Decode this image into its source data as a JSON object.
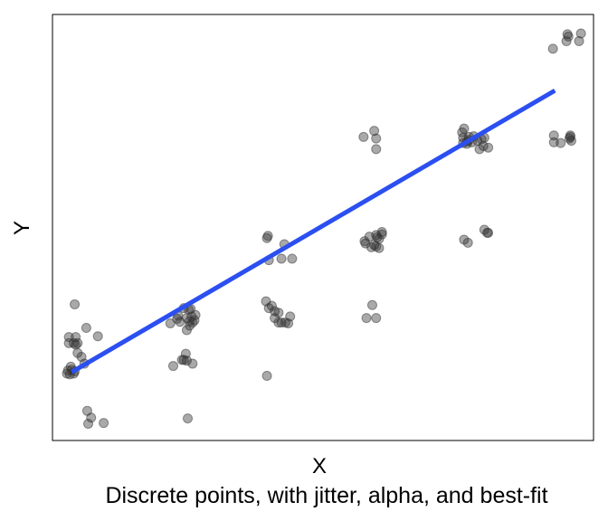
{
  "chart_data": {
    "type": "scatter",
    "title": "",
    "xlabel": "X",
    "ylabel": "Y",
    "caption": "Discrete points, with jitter, alpha, and best-fit",
    "xlim": [
      0.7,
      6.3
    ],
    "ylim": [
      0.7,
      6.3
    ],
    "grid": false,
    "legend": "none",
    "point_color": "#333333",
    "point_alpha": 0.42,
    "line_color": "#2b4ff0",
    "points": [
      {
        "x": 1.06,
        "y": 1.09
      },
      {
        "x": 1.1,
        "y": 1.0
      },
      {
        "x": 1.23,
        "y": 0.93
      },
      {
        "x": 1.07,
        "y": 0.92
      },
      {
        "x": 0.93,
        "y": 2.49
      },
      {
        "x": 1.05,
        "y": 2.18
      },
      {
        "x": 0.87,
        "y": 2.06
      },
      {
        "x": 0.94,
        "y": 2.06
      },
      {
        "x": 1.17,
        "y": 2.07
      },
      {
        "x": 0.92,
        "y": 1.98
      },
      {
        "x": 0.87,
        "y": 1.98
      },
      {
        "x": 0.94,
        "y": 1.96
      },
      {
        "x": 0.96,
        "y": 1.98
      },
      {
        "x": 2.06,
        "y": 2.44
      },
      {
        "x": 2.11,
        "y": 2.42
      },
      {
        "x": 2.0,
        "y": 2.34
      },
      {
        "x": 2.09,
        "y": 2.31
      },
      {
        "x": 2.18,
        "y": 2.35
      },
      {
        "x": 2.14,
        "y": 2.33
      },
      {
        "x": 2.12,
        "y": 2.27
      },
      {
        "x": 2.15,
        "y": 2.25
      },
      {
        "x": 2.17,
        "y": 2.28
      },
      {
        "x": 1.99,
        "y": 2.3
      },
      {
        "x": 1.92,
        "y": 2.24
      },
      {
        "x": 2.13,
        "y": 2.43
      },
      {
        "x": 2.02,
        "y": 2.26
      },
      {
        "x": 2.09,
        "y": 2.15
      },
      {
        "x": 2.12,
        "y": 2.21
      },
      {
        "x": 2.08,
        "y": 1.84
      },
      {
        "x": 2.04,
        "y": 1.76
      },
      {
        "x": 2.09,
        "y": 1.75
      },
      {
        "x": 2.15,
        "y": 1.71
      },
      {
        "x": 1.95,
        "y": 1.68
      },
      {
        "x": 2.06,
        "y": 1.76
      },
      {
        "x": 2.1,
        "y": 0.99
      },
      {
        "x": 2.92,
        "y": 3.36
      },
      {
        "x": 2.93,
        "y": 3.39
      },
      {
        "x": 3.1,
        "y": 3.28
      },
      {
        "x": 2.94,
        "y": 3.07
      },
      {
        "x": 3.07,
        "y": 3.09
      },
      {
        "x": 3.18,
        "y": 3.09
      },
      {
        "x": 2.91,
        "y": 2.53
      },
      {
        "x": 2.97,
        "y": 2.47
      },
      {
        "x": 2.94,
        "y": 2.44
      },
      {
        "x": 3.0,
        "y": 2.4
      },
      {
        "x": 3.04,
        "y": 2.38
      },
      {
        "x": 3.16,
        "y": 2.33
      },
      {
        "x": 3.0,
        "y": 2.31
      },
      {
        "x": 3.04,
        "y": 2.25
      },
      {
        "x": 3.07,
        "y": 2.25
      },
      {
        "x": 3.11,
        "y": 2.25
      },
      {
        "x": 3.14,
        "y": 2.24
      },
      {
        "x": 2.92,
        "y": 1.55
      },
      {
        "x": 3.92,
        "y": 4.69
      },
      {
        "x": 4.03,
        "y": 4.77
      },
      {
        "x": 4.05,
        "y": 4.67
      },
      {
        "x": 4.05,
        "y": 4.53
      },
      {
        "x": 3.98,
        "y": 3.38
      },
      {
        "x": 4.05,
        "y": 3.4
      },
      {
        "x": 3.94,
        "y": 3.29
      },
      {
        "x": 4.11,
        "y": 3.41
      },
      {
        "x": 4.06,
        "y": 3.37
      },
      {
        "x": 4.08,
        "y": 3.23
      },
      {
        "x": 4.03,
        "y": 3.27
      },
      {
        "x": 4.05,
        "y": 3.25
      },
      {
        "x": 3.93,
        "y": 3.32
      },
      {
        "x": 4.11,
        "y": 3.44
      },
      {
        "x": 4.08,
        "y": 3.35
      },
      {
        "x": 4.0,
        "y": 3.24
      },
      {
        "x": 4.01,
        "y": 2.48
      },
      {
        "x": 3.95,
        "y": 2.31
      },
      {
        "x": 4.05,
        "y": 2.31
      },
      {
        "x": 4.94,
        "y": 4.75
      },
      {
        "x": 4.96,
        "y": 4.8
      },
      {
        "x": 4.95,
        "y": 4.68
      },
      {
        "x": 4.99,
        "y": 4.63
      },
      {
        "x": 5.04,
        "y": 4.62
      },
      {
        "x": 5.1,
        "y": 4.64
      },
      {
        "x": 5.14,
        "y": 4.66
      },
      {
        "x": 5.16,
        "y": 4.57
      },
      {
        "x": 5.01,
        "y": 4.69
      },
      {
        "x": 5.17,
        "y": 4.68
      },
      {
        "x": 5.06,
        "y": 4.7
      },
      {
        "x": 5.21,
        "y": 4.55
      },
      {
        "x": 4.99,
        "y": 4.6
      },
      {
        "x": 5.01,
        "y": 4.65
      },
      {
        "x": 4.95,
        "y": 4.61
      },
      {
        "x": 5.12,
        "y": 4.53
      },
      {
        "x": 5.17,
        "y": 3.47
      },
      {
        "x": 5.2,
        "y": 3.43
      },
      {
        "x": 4.96,
        "y": 3.34
      },
      {
        "x": 5.21,
        "y": 3.43
      },
      {
        "x": 5.0,
        "y": 3.3
      },
      {
        "x": 5.88,
        "y": 5.85
      },
      {
        "x": 6.03,
        "y": 6.04
      },
      {
        "x": 6.04,
        "y": 6.01
      },
      {
        "x": 6.17,
        "y": 6.05
      },
      {
        "x": 6.15,
        "y": 5.95
      },
      {
        "x": 6.02,
        "y": 5.95
      },
      {
        "x": 5.89,
        "y": 4.71
      },
      {
        "x": 6.06,
        "y": 4.69
      },
      {
        "x": 6.05,
        "y": 4.67
      },
      {
        "x": 5.89,
        "y": 4.62
      },
      {
        "x": 5.96,
        "y": 4.61
      },
      {
        "x": 6.07,
        "y": 4.64
      },
      {
        "x": 6.06,
        "y": 4.71
      },
      {
        "x": 0.89,
        "y": 1.67
      },
      {
        "x": 0.86,
        "y": 1.62
      },
      {
        "x": 0.9,
        "y": 1.63
      },
      {
        "x": 0.93,
        "y": 1.61
      },
      {
        "x": 0.85,
        "y": 1.58
      },
      {
        "x": 0.88,
        "y": 1.57
      },
      {
        "x": 0.92,
        "y": 1.58
      },
      {
        "x": 1.0,
        "y": 1.8
      },
      {
        "x": 0.96,
        "y": 1.85
      },
      {
        "x": 1.03,
        "y": 1.71
      }
    ],
    "fit_line": {
      "x": [
        0.9,
        5.9
      ],
      "y": [
        1.6,
        5.3
      ]
    }
  }
}
